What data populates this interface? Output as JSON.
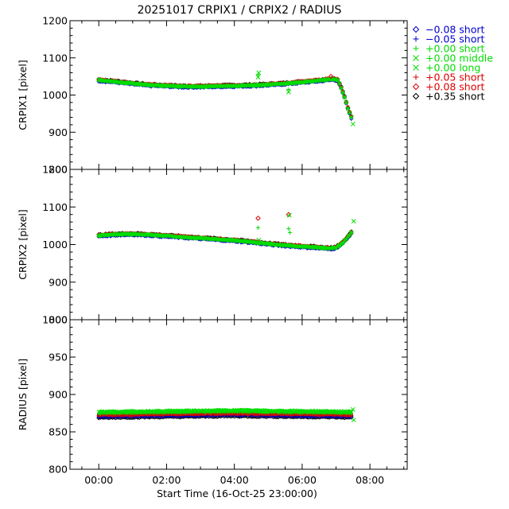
{
  "chart_data": {
    "type": "scatter",
    "title": "20251017 CRPIX1 / CRPIX2 / RADIUS",
    "xlabel": "Start Time (16-Oct-25 23:00:00)",
    "xlim": [
      -0.85,
      9.1
    ],
    "x_ticks": [
      {
        "value": 0,
        "label": "00:00"
      },
      {
        "value": 2,
        "label": "02:00"
      },
      {
        "value": 4,
        "label": "04:00"
      },
      {
        "value": 6,
        "label": "06:00"
      },
      {
        "value": 8,
        "label": "08:00"
      }
    ],
    "panels": [
      {
        "id": "crpix1",
        "ylabel": "CRPIX1 [pixel]",
        "ylim": [
          800,
          1200
        ],
        "y_ticks": [
          "800",
          "900",
          "1000",
          "1100",
          "1200"
        ],
        "baseline": [
          [
            0,
            1040
          ],
          [
            0.5,
            1036
          ],
          [
            1,
            1031
          ],
          [
            1.5,
            1027
          ],
          [
            2,
            1025
          ],
          [
            2.5,
            1023
          ],
          [
            3,
            1023
          ],
          [
            3.5,
            1024
          ],
          [
            4,
            1025
          ],
          [
            4.5,
            1026
          ],
          [
            5,
            1028
          ],
          [
            5.5,
            1031
          ],
          [
            6,
            1035
          ],
          [
            6.5,
            1039
          ],
          [
            6.9,
            1043
          ],
          [
            7.05,
            1040
          ],
          [
            7.15,
            1020
          ],
          [
            7.25,
            995
          ],
          [
            7.35,
            965
          ],
          [
            7.45,
            940
          ]
        ],
        "outliers": [
          {
            "x": 4.7,
            "y": 1055,
            "series": 2
          },
          {
            "x": 4.7,
            "y": 1048,
            "series": 3
          },
          {
            "x": 4.72,
            "y": 1060,
            "series": 4
          },
          {
            "x": 5.6,
            "y": 1015,
            "series": 2
          },
          {
            "x": 5.6,
            "y": 1008,
            "series": 4
          },
          {
            "x": 6.85,
            "y": 1050,
            "series": 6
          },
          {
            "x": 7.5,
            "y": 922,
            "series": 4
          }
        ]
      },
      {
        "id": "crpix2",
        "ylabel": "CRPIX2 [pixel]",
        "ylim": [
          800,
          1200
        ],
        "y_ticks": [
          "800",
          "900",
          "1000",
          "1100",
          "1200"
        ],
        "baseline": [
          [
            0,
            1024
          ],
          [
            0.5,
            1027
          ],
          [
            1,
            1028
          ],
          [
            1.5,
            1026
          ],
          [
            2,
            1023
          ],
          [
            2.5,
            1020
          ],
          [
            3,
            1017
          ],
          [
            3.5,
            1014
          ],
          [
            4,
            1011
          ],
          [
            4.5,
            1007
          ],
          [
            5,
            1002
          ],
          [
            5.5,
            998
          ],
          [
            6,
            995
          ],
          [
            6.5,
            992
          ],
          [
            6.8,
            990
          ],
          [
            7,
            992
          ],
          [
            7.2,
            1005
          ],
          [
            7.35,
            1020
          ],
          [
            7.45,
            1032
          ]
        ],
        "outliers": [
          {
            "x": 4.7,
            "y": 1070,
            "series": 6
          },
          {
            "x": 4.7,
            "y": 1045,
            "series": 2
          },
          {
            "x": 4.72,
            "y": 1012,
            "series": 4
          },
          {
            "x": 5.6,
            "y": 1080,
            "series": 6
          },
          {
            "x": 5.62,
            "y": 1078,
            "series": 4
          },
          {
            "x": 5.6,
            "y": 1042,
            "series": 2
          },
          {
            "x": 5.64,
            "y": 1032,
            "series": 2
          },
          {
            "x": 7.52,
            "y": 1062,
            "series": 4
          }
        ]
      },
      {
        "id": "radius",
        "ylabel": "RADIUS [pixel]",
        "ylim": [
          800,
          1000
        ],
        "y_ticks": [
          "800",
          "850",
          "900",
          "950",
          "1000"
        ],
        "baseline": [
          [
            0,
            873
          ],
          [
            1,
            873.5
          ],
          [
            2,
            874
          ],
          [
            3,
            874.5
          ],
          [
            4,
            875
          ],
          [
            5,
            874.5
          ],
          [
            6,
            874
          ],
          [
            7,
            873.5
          ],
          [
            7.45,
            873
          ]
        ],
        "series_offsets": [
          -2.5,
          -1,
          1.5,
          3,
          4,
          0,
          -0.5,
          -4
        ],
        "outliers": [
          {
            "x": 7.5,
            "y": 880,
            "series": 4
          },
          {
            "x": 7.52,
            "y": 866,
            "series": 3
          }
        ]
      }
    ],
    "legend_position": "right",
    "series": [
      {
        "name": "-0.08 short",
        "label": "−0.08 short",
        "symbol": "diamond",
        "color": "#0000cc"
      },
      {
        "name": "-0.05 short",
        "label": "−0.05 short",
        "symbol": "plus",
        "color": "#0000cc"
      },
      {
        "name": "+0.00 short",
        "label": "+0.00 short",
        "symbol": "plus",
        "color": "#00dd00"
      },
      {
        "name": "+0.00 middle",
        "label": "+0.00 middle",
        "symbol": "cross",
        "color": "#00dd00"
      },
      {
        "name": "+0.00 long",
        "label": "+0.00 long",
        "symbol": "cross",
        "color": "#00dd00"
      },
      {
        "name": "+0.05 short",
        "label": "+0.05 short",
        "symbol": "plus",
        "color": "#dd0000"
      },
      {
        "name": "+0.08 short",
        "label": "+0.08 short",
        "symbol": "diamond",
        "color": "#dd0000"
      },
      {
        "name": "+0.35 short",
        "label": "+0.35 short",
        "symbol": "diamond",
        "color": "#000000"
      }
    ]
  }
}
